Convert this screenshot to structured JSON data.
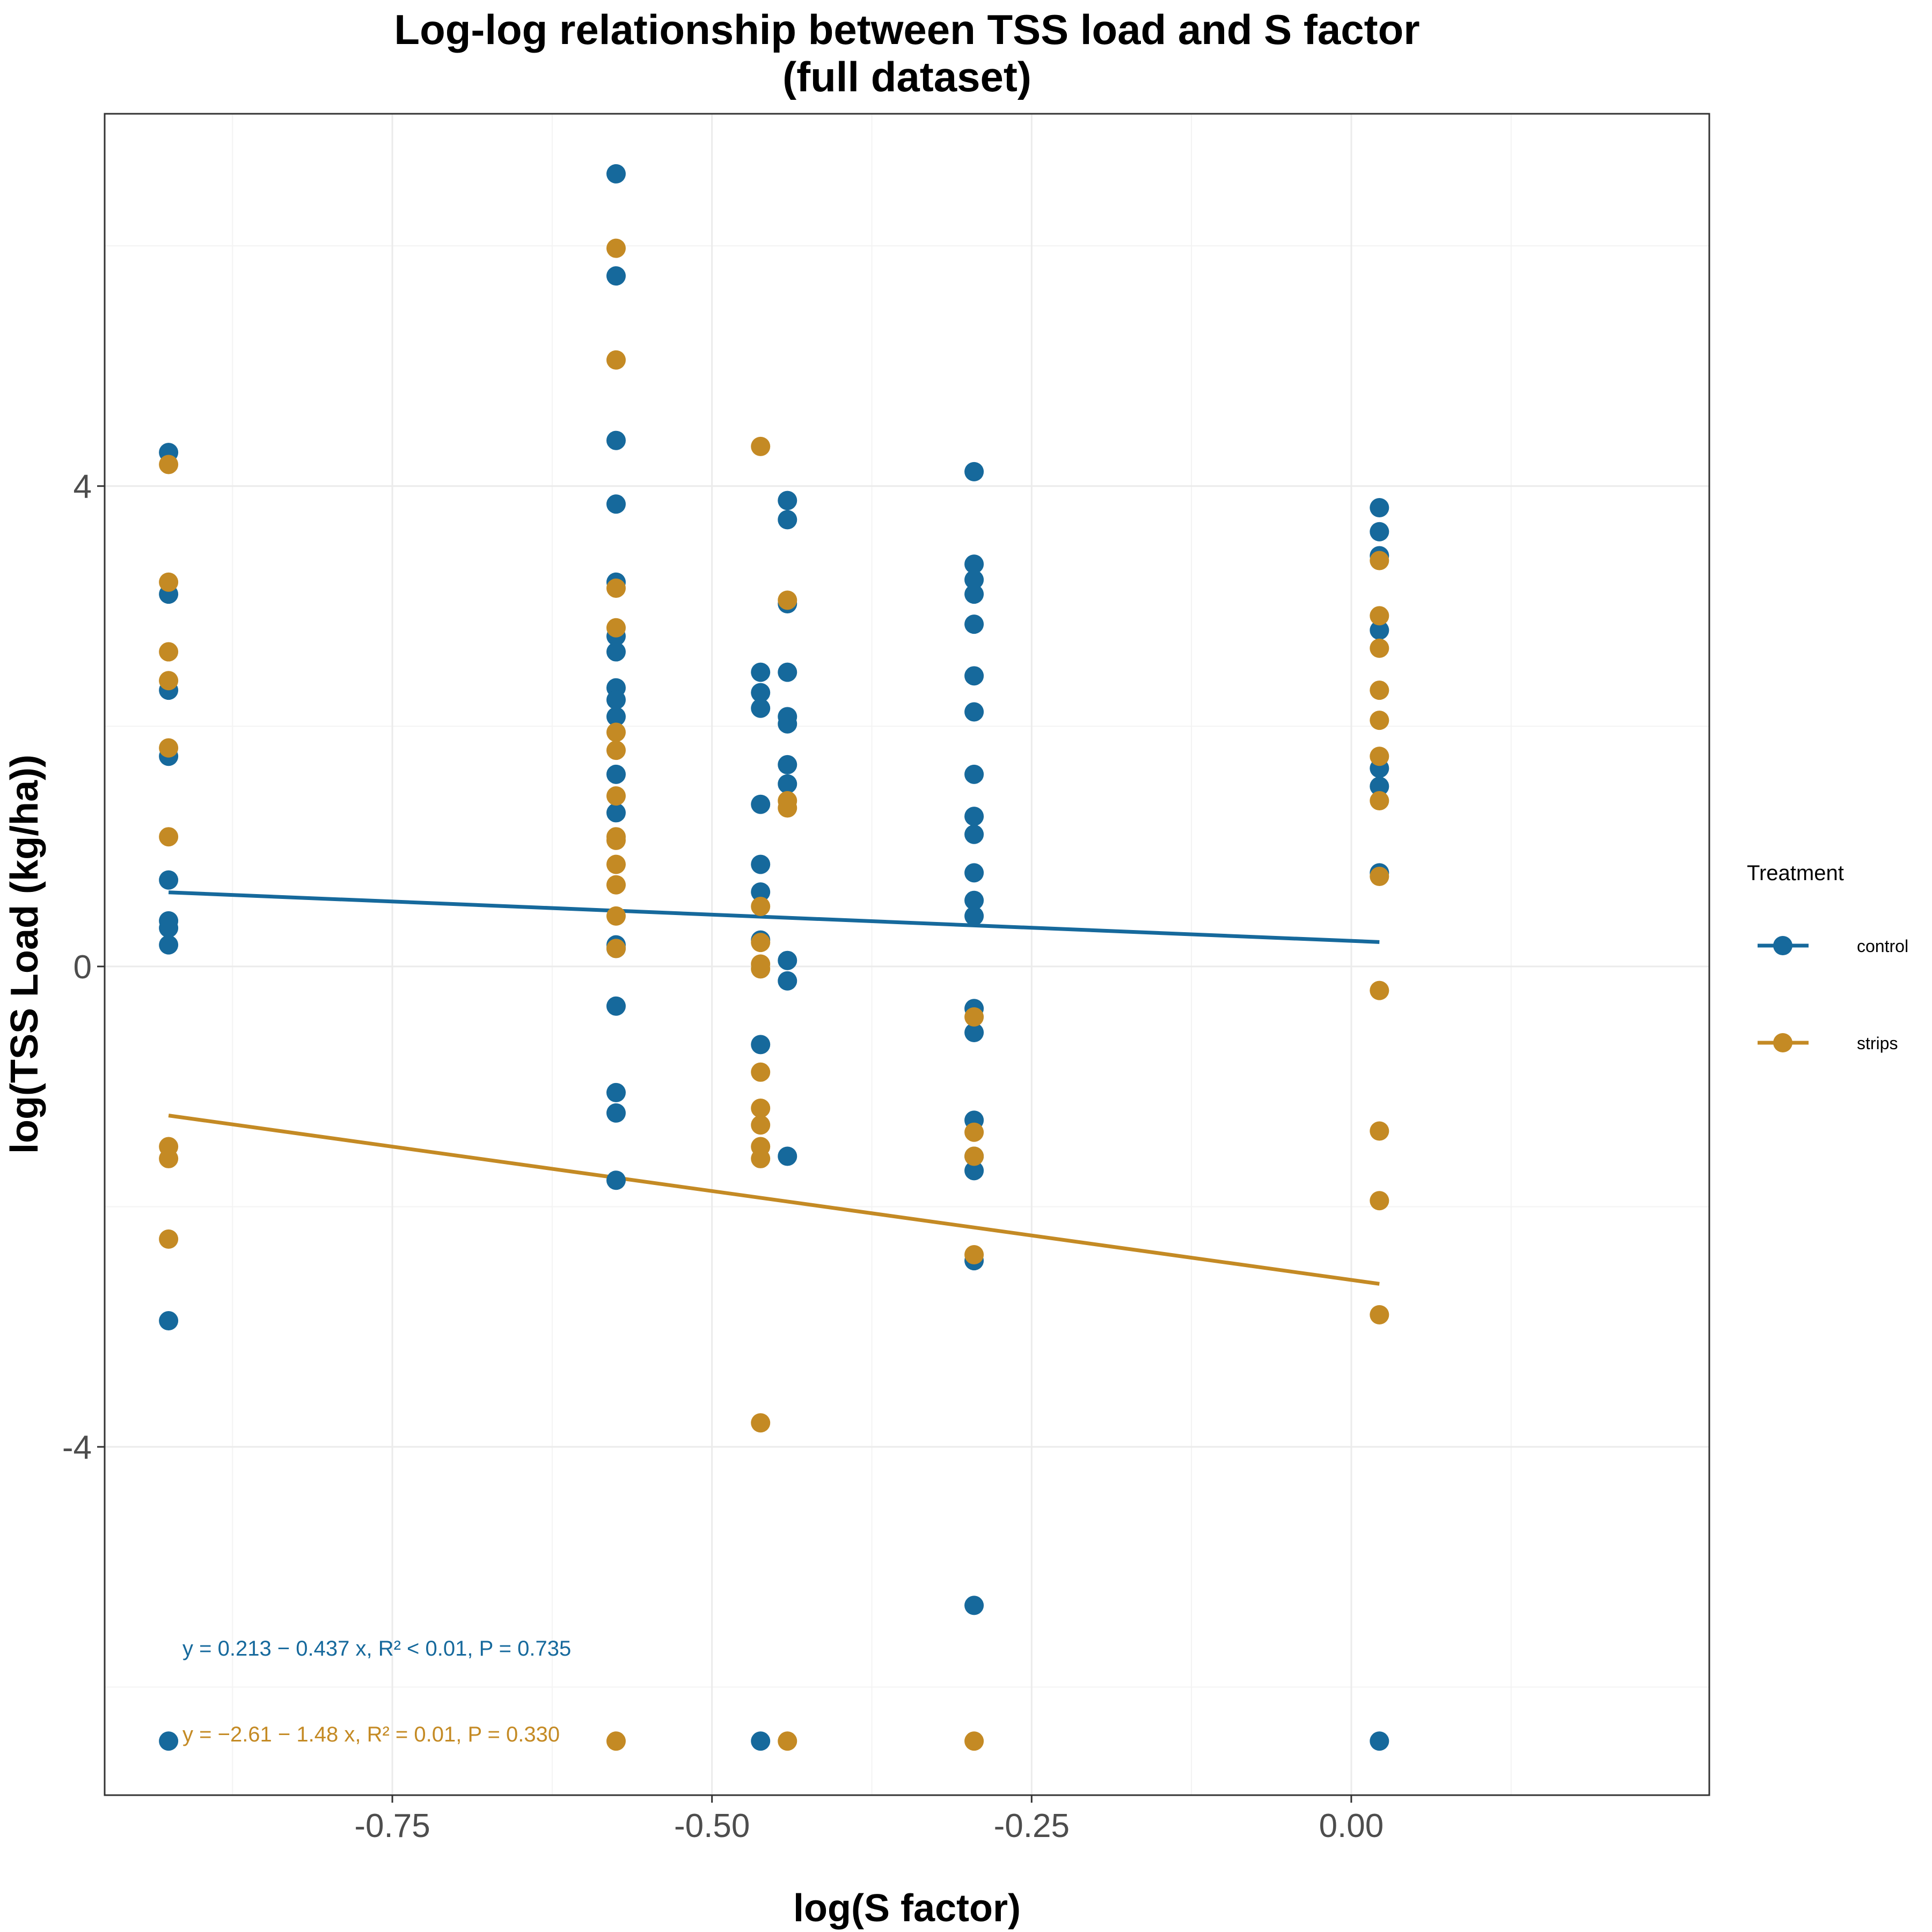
{
  "chart_data": {
    "type": "scatter",
    "title": "Log-log relationship between TSS load and S factor",
    "subtitle": "(full dataset)",
    "xlabel": "log(S factor)",
    "ylabel": "log(TSS Load (kg/ha))",
    "xlim": [
      -0.975,
      0.28
    ],
    "ylim": [
      -6.9,
      7.1
    ],
    "x_ticks": [
      -0.75,
      -0.5,
      -0.25,
      0.0
    ],
    "x_tick_labels": [
      "-0.75",
      "-0.50",
      "-0.25",
      "0.00"
    ],
    "y_ticks": [
      -4,
      0,
      4
    ],
    "y_tick_labels": [
      "-4",
      "0",
      "4"
    ],
    "grid": true,
    "legend": {
      "title": "Treatment",
      "position": "right"
    },
    "series": [
      {
        "name": "control",
        "color": "#16699c",
        "points": [
          [
            -0.925,
            4.28
          ],
          [
            -0.925,
            3.1
          ],
          [
            -0.925,
            2.3
          ],
          [
            -0.925,
            1.75
          ],
          [
            -0.925,
            0.72
          ],
          [
            -0.925,
            0.38
          ],
          [
            -0.925,
            0.32
          ],
          [
            -0.925,
            0.18
          ],
          [
            -0.925,
            -2.95
          ],
          [
            -0.925,
            -6.45
          ],
          [
            -0.575,
            6.6
          ],
          [
            -0.575,
            5.75
          ],
          [
            -0.575,
            4.38
          ],
          [
            -0.575,
            3.85
          ],
          [
            -0.575,
            3.2
          ],
          [
            -0.575,
            2.75
          ],
          [
            -0.575,
            2.62
          ],
          [
            -0.575,
            2.32
          ],
          [
            -0.575,
            2.22
          ],
          [
            -0.575,
            2.08
          ],
          [
            -0.575,
            1.6
          ],
          [
            -0.575,
            1.28
          ],
          [
            -0.575,
            0.18
          ],
          [
            -0.575,
            0.15
          ],
          [
            -0.575,
            -0.33
          ],
          [
            -0.575,
            -1.05
          ],
          [
            -0.575,
            -1.22
          ],
          [
            -0.575,
            -1.78
          ],
          [
            -0.462,
            2.45
          ],
          [
            -0.462,
            2.28
          ],
          [
            -0.462,
            2.15
          ],
          [
            -0.462,
            1.35
          ],
          [
            -0.462,
            0.85
          ],
          [
            -0.462,
            0.62
          ],
          [
            -0.462,
            0.22
          ],
          [
            -0.462,
            -0.65
          ],
          [
            -0.462,
            -6.45
          ],
          [
            -0.441,
            3.88
          ],
          [
            -0.441,
            3.72
          ],
          [
            -0.441,
            3.02
          ],
          [
            -0.441,
            2.45
          ],
          [
            -0.441,
            2.08
          ],
          [
            -0.441,
            2.02
          ],
          [
            -0.441,
            1.68
          ],
          [
            -0.441,
            1.52
          ],
          [
            -0.441,
            0.05
          ],
          [
            -0.441,
            -0.12
          ],
          [
            -0.441,
            -1.58
          ],
          [
            -0.295,
            4.12
          ],
          [
            -0.295,
            3.35
          ],
          [
            -0.295,
            3.22
          ],
          [
            -0.295,
            3.1
          ],
          [
            -0.295,
            2.85
          ],
          [
            -0.295,
            2.42
          ],
          [
            -0.295,
            2.12
          ],
          [
            -0.295,
            1.6
          ],
          [
            -0.295,
            1.25
          ],
          [
            -0.295,
            1.1
          ],
          [
            -0.295,
            0.78
          ],
          [
            -0.295,
            0.55
          ],
          [
            -0.295,
            0.42
          ],
          [
            -0.295,
            -0.35
          ],
          [
            -0.295,
            -0.55
          ],
          [
            -0.295,
            -1.28
          ],
          [
            -0.295,
            -1.58
          ],
          [
            -0.295,
            -1.7
          ],
          [
            -0.295,
            -2.45
          ],
          [
            -0.295,
            -5.32
          ],
          [
            0.022,
            3.82
          ],
          [
            0.022,
            3.62
          ],
          [
            0.022,
            3.42
          ],
          [
            0.022,
            2.8
          ],
          [
            0.022,
            1.65
          ],
          [
            0.022,
            1.5
          ],
          [
            0.022,
            0.78
          ],
          [
            0.022,
            -6.45
          ]
        ],
        "fit": {
          "intercept": 0.213,
          "slope": -0.437,
          "x_range": [
            -0.925,
            0.022
          ]
        },
        "annotation": "y = 0.213 − 0.437 x, R² < 0.01, P = 0.735"
      },
      {
        "name": "strips",
        "color": "#c48a24",
        "points": [
          [
            -0.925,
            4.18
          ],
          [
            -0.925,
            3.2
          ],
          [
            -0.925,
            2.62
          ],
          [
            -0.925,
            2.38
          ],
          [
            -0.925,
            1.82
          ],
          [
            -0.925,
            1.08
          ],
          [
            -0.925,
            -1.5
          ],
          [
            -0.925,
            -1.6
          ],
          [
            -0.925,
            -2.27
          ],
          [
            -0.575,
            5.98
          ],
          [
            -0.575,
            5.05
          ],
          [
            -0.575,
            3.15
          ],
          [
            -0.575,
            2.82
          ],
          [
            -0.575,
            1.95
          ],
          [
            -0.575,
            1.8
          ],
          [
            -0.575,
            1.42
          ],
          [
            -0.575,
            1.08
          ],
          [
            -0.575,
            1.05
          ],
          [
            -0.575,
            0.85
          ],
          [
            -0.575,
            0.68
          ],
          [
            -0.575,
            0.42
          ],
          [
            -0.575,
            0.15
          ],
          [
            -0.575,
            -6.45
          ],
          [
            -0.462,
            4.33
          ],
          [
            -0.462,
            0.5
          ],
          [
            -0.462,
            0.2
          ],
          [
            -0.462,
            0.02
          ],
          [
            -0.462,
            -0.02
          ],
          [
            -0.462,
            -0.88
          ],
          [
            -0.462,
            -1.18
          ],
          [
            -0.462,
            -1.32
          ],
          [
            -0.462,
            -1.5
          ],
          [
            -0.462,
            -1.6
          ],
          [
            -0.462,
            -3.8
          ],
          [
            -0.441,
            3.05
          ],
          [
            -0.441,
            1.38
          ],
          [
            -0.441,
            1.32
          ],
          [
            -0.441,
            -6.45
          ],
          [
            -0.295,
            -0.42
          ],
          [
            -0.295,
            -1.38
          ],
          [
            -0.295,
            -1.58
          ],
          [
            -0.295,
            -2.4
          ],
          [
            -0.295,
            -6.45
          ],
          [
            0.022,
            3.38
          ],
          [
            0.022,
            2.92
          ],
          [
            0.022,
            2.65
          ],
          [
            0.022,
            2.3
          ],
          [
            0.022,
            2.05
          ],
          [
            0.022,
            1.75
          ],
          [
            0.022,
            1.38
          ],
          [
            0.022,
            0.75
          ],
          [
            0.022,
            -0.2
          ],
          [
            0.022,
            -1.37
          ],
          [
            0.022,
            -1.95
          ],
          [
            0.022,
            -2.9
          ]
        ],
        "fit": {
          "intercept": -2.61,
          "slope": -1.48,
          "x_range": [
            -0.925,
            0.022
          ]
        },
        "annotation": "y = −2.61 − 1.48 x, R² = 0.01, P = 0.330"
      }
    ]
  }
}
